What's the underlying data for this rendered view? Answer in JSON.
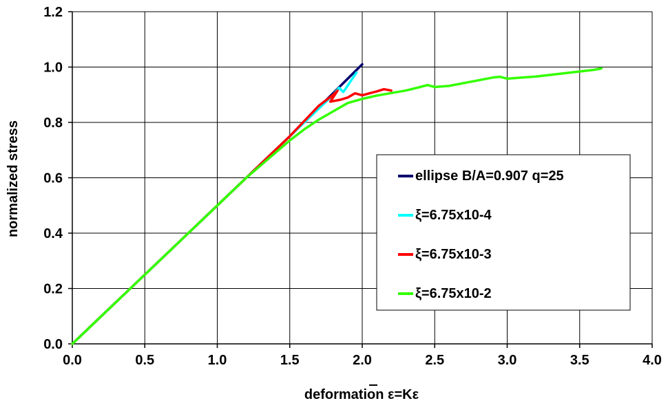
{
  "chart_data": {
    "type": "line",
    "title": "",
    "xlabel": "deformation ε=Kε",
    "ylabel": "normalized stress",
    "xlim": [
      0,
      4.0
    ],
    "ylim": [
      0,
      1.2
    ],
    "xticks": [
      "0.0",
      "0.5",
      "1.0",
      "1.5",
      "2.0",
      "2.5",
      "3.0",
      "3.5",
      "4.0"
    ],
    "yticks": [
      "0.0",
      "0.2",
      "0.4",
      "0.6",
      "0.8",
      "1.0",
      "1.2"
    ],
    "grid": true,
    "legend_position": "right",
    "series": [
      {
        "name": "ellipse B/A=0.907 q=25",
        "color": "#00006e",
        "x": [
          0.0,
          0.5,
          1.0,
          1.5,
          2.0
        ],
        "y": [
          0.0,
          0.25,
          0.5,
          0.75,
          1.01
        ]
      },
      {
        "name": "ξ=6.75x10-4",
        "color": "#00ffff",
        "x": [
          0.0,
          0.5,
          1.0,
          1.5,
          1.8,
          1.84,
          1.87,
          1.96
        ],
        "y": [
          0.0,
          0.25,
          0.5,
          0.75,
          0.9,
          0.925,
          0.91,
          0.98
        ]
      },
      {
        "name": "ξ=6.75x10-3",
        "color": "#ff0000",
        "x": [
          0.0,
          0.5,
          1.0,
          1.5,
          1.7,
          1.8,
          1.83,
          1.78,
          1.85,
          1.9,
          1.95,
          2.0,
          2.05,
          2.1,
          2.15,
          2.2
        ],
        "y": [
          0.0,
          0.25,
          0.5,
          0.75,
          0.86,
          0.9,
          0.915,
          0.875,
          0.882,
          0.89,
          0.905,
          0.898,
          0.905,
          0.912,
          0.92,
          0.915
        ]
      },
      {
        "name": "ξ=6.75x10-2",
        "color": "#33ff00",
        "x": [
          0.0,
          0.5,
          1.0,
          1.2,
          1.4,
          1.5,
          1.6,
          1.7,
          1.8,
          1.9,
          2.0,
          2.1,
          2.2,
          2.3,
          2.4,
          2.45,
          2.5,
          2.6,
          2.7,
          2.8,
          2.9,
          2.95,
          3.0,
          3.2,
          3.4,
          3.6,
          3.65
        ],
        "y": [
          0.0,
          0.25,
          0.5,
          0.6,
          0.69,
          0.735,
          0.775,
          0.81,
          0.84,
          0.87,
          0.885,
          0.897,
          0.906,
          0.915,
          0.928,
          0.935,
          0.928,
          0.932,
          0.942,
          0.952,
          0.962,
          0.965,
          0.958,
          0.966,
          0.978,
          0.99,
          0.995
        ]
      }
    ]
  }
}
